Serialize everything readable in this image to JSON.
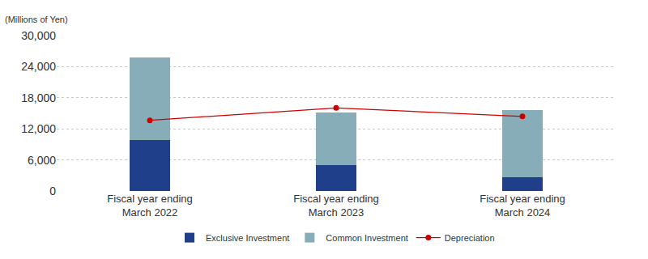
{
  "chart_data": {
    "type": "bar",
    "y_label": "(Millions of Yen)",
    "categories": [
      "Fiscal year ending March 2022",
      "Fiscal year ending March 2023",
      "Fiscal year ending March 2024"
    ],
    "series": [
      {
        "name": "Exclusive Investment",
        "type": "bar",
        "color": "#1f3f8a",
        "values": [
          9900,
          5000,
          2600
        ]
      },
      {
        "name": "Common Investment",
        "type": "bar",
        "color": "#87aeb8",
        "values": [
          15900,
          10100,
          13000
        ]
      },
      {
        "name": "Depreciation",
        "type": "line",
        "color": "#cc0000",
        "marker": "circle",
        "line_style": "solid",
        "values": [
          13650,
          16050,
          14400
        ]
      }
    ],
    "stacked": true,
    "ylim": [
      0,
      30000
    ],
    "yticks": [
      0,
      {
        "value": 6000,
        "label": "6,000"
      },
      {
        "value": 12000,
        "label": "12,000"
      },
      {
        "value": 18000,
        "label": "18,000"
      },
      {
        "value": 24000,
        "label": "24,000"
      },
      {
        "value": 30000,
        "label": "30,000"
      }
    ],
    "grid": true,
    "legend": "bottom"
  }
}
